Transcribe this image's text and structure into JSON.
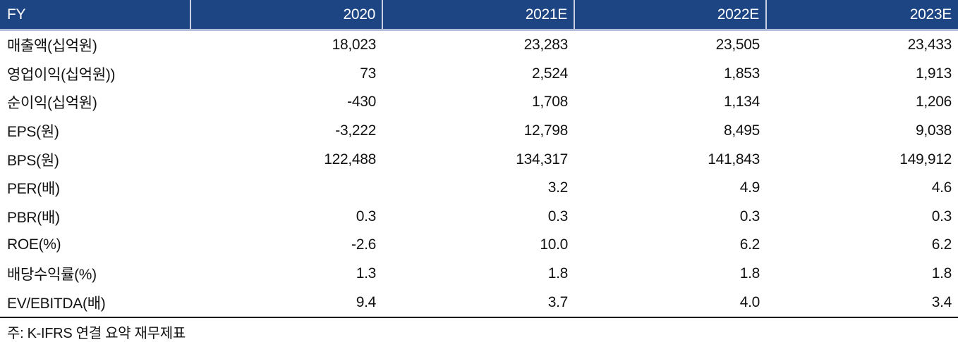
{
  "colors": {
    "header_bg": "#1D4483",
    "header_text": "#FFFFFF",
    "header_separator": "#C8D1E2",
    "header_underline": "#B3BFDA",
    "table_bottom_rule": "#1B1B1B",
    "body_text": "#121212"
  },
  "table": {
    "columns": [
      "FY",
      "2020",
      "2021E",
      "2022E",
      "2023E"
    ],
    "rows": [
      {
        "label": "매출액(십억원)",
        "values": [
          "18,023",
          "23,283",
          "23,505",
          "23,433"
        ]
      },
      {
        "label": "영업이익(십억원))",
        "values": [
          "73",
          "2,524",
          "1,853",
          "1,913"
        ]
      },
      {
        "label": "순이익(십억원)",
        "values": [
          "-430",
          "1,708",
          "1,134",
          "1,206"
        ]
      },
      {
        "label": "EPS(원)",
        "values": [
          "-3,222",
          "12,798",
          "8,495",
          "9,038"
        ]
      },
      {
        "label": "BPS(원)",
        "values": [
          "122,488",
          "134,317",
          "141,843",
          "149,912"
        ]
      },
      {
        "label": "PER(배)",
        "values": [
          "",
          "3.2",
          "4.9",
          "4.6"
        ]
      },
      {
        "label": "PBR(배)",
        "values": [
          "0.3",
          "0.3",
          "0.3",
          "0.3"
        ]
      },
      {
        "label": "ROE(%)",
        "values": [
          "-2.6",
          "10.0",
          "6.2",
          "6.2"
        ]
      },
      {
        "label": "배당수익률(%)",
        "values": [
          "1.3",
          "1.8",
          "1.8",
          "1.8"
        ]
      },
      {
        "label": "EV/EBITDA(배)",
        "values": [
          "9.4",
          "3.7",
          "4.0",
          "3.4"
        ]
      }
    ],
    "footnote": "주: K-IFRS 연결 요약 재무제표"
  }
}
